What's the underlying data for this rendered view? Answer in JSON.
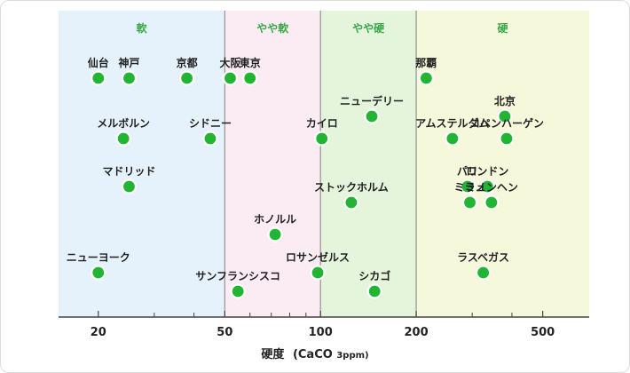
{
  "chart_data": {
    "type": "scatter",
    "x_scale": "log",
    "xlim": [
      15,
      700
    ],
    "xlabel": "硬度",
    "xlabel_unit_main": "(CaCO",
    "xlabel_unit_sub": "3ppm)",
    "x_ticks": [
      20,
      50,
      100,
      200,
      500
    ],
    "x_minor_ticks": [
      30,
      40,
      60,
      70,
      80,
      90,
      300,
      400
    ],
    "grid": false,
    "bands": [
      {
        "label": "軟",
        "from": 15,
        "to": 50,
        "color": "#e6f2fb"
      },
      {
        "label": "やや軟",
        "from": 50,
        "to": 100,
        "color": "#fbecf3"
      },
      {
        "label": "やや硬",
        "from": 100,
        "to": 200,
        "color": "#e4f5dc"
      },
      {
        "label": "硬",
        "from": 200,
        "to": 700,
        "color": "#f6f8dc"
      }
    ],
    "point_color": "#22b534",
    "points": [
      {
        "name": "仙台",
        "x": 20,
        "row": 1,
        "label_pos": "above"
      },
      {
        "name": "神戸",
        "x": 25,
        "row": 1,
        "label_pos": "above"
      },
      {
        "name": "京都",
        "x": 38,
        "row": 1,
        "label_pos": "above"
      },
      {
        "name": "大阪",
        "x": 52,
        "row": 1,
        "label_pos": "above"
      },
      {
        "name": "東京",
        "x": 60,
        "row": 1,
        "label_pos": "above"
      },
      {
        "name": "那覇",
        "x": 215,
        "row": 1,
        "label_pos": "above"
      },
      {
        "name": "ニューデリー",
        "x": 145,
        "row": 2,
        "label_pos": "above"
      },
      {
        "name": "北京",
        "x": 380,
        "row": 2,
        "label_pos": "above"
      },
      {
        "name": "メルボルン",
        "x": 24,
        "row": 3,
        "label_pos": "above"
      },
      {
        "name": "シドニー",
        "x": 45,
        "row": 3,
        "label_pos": "above"
      },
      {
        "name": "カイロ",
        "x": 101,
        "row": 3,
        "label_pos": "above"
      },
      {
        "name": "アムステルダム",
        "x": 260,
        "row": 3,
        "label_pos": "above"
      },
      {
        "name": "コペンハーゲン",
        "x": 385,
        "row": 3,
        "label_pos": "above"
      },
      {
        "name": "パリ",
        "x": 290,
        "row": 4,
        "label_pos": "above"
      },
      {
        "name": "ロンドン",
        "x": 335,
        "row": 4,
        "label_pos": "above"
      },
      {
        "name": "マドリッド",
        "x": 25,
        "row": 4,
        "label_pos": "above"
      },
      {
        "name": "ストックホルム",
        "x": 125,
        "row": 5,
        "label_pos": "above"
      },
      {
        "name": "ミラノ",
        "x": 295,
        "row": 5,
        "label_pos": "above"
      },
      {
        "name": "ミュンヘン",
        "x": 345,
        "row": 5,
        "label_pos": "above"
      },
      {
        "name": "ホノルル",
        "x": 72,
        "row": 6,
        "label_pos": "above"
      },
      {
        "name": "ニューヨーク",
        "x": 20,
        "row": 7,
        "label_pos": "above"
      },
      {
        "name": "ラスベガス",
        "x": 325,
        "row": 7,
        "label_pos": "above"
      },
      {
        "name": "ロサンゼルス",
        "x": 98,
        "row": 7,
        "label_pos": "above"
      },
      {
        "name": "サンフランシスコ",
        "x": 55,
        "row": 8,
        "label_pos": "above"
      },
      {
        "name": "シカゴ",
        "x": 148,
        "row": 8,
        "label_pos": "above"
      }
    ]
  }
}
